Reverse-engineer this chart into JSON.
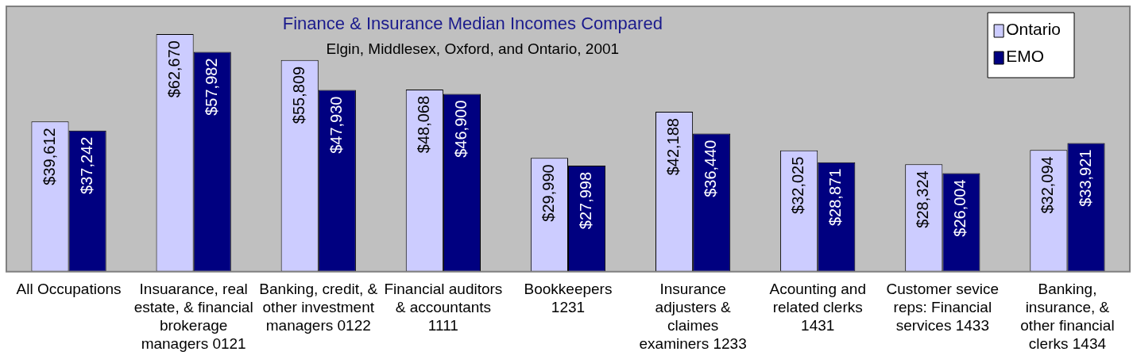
{
  "chart_data": {
    "type": "bar",
    "title": "Finance & Insurance Median Incomes Compared",
    "subtitle": "Elgin, Middlesex, Oxford, and Ontario, 2001",
    "categories": [
      "All Occupations",
      "Insuarance, real estate, & financial brokerage managers 0121",
      "Banking, credit, & other investment managers 0122",
      "Financial auditors & accountants 1111",
      "Bookkeepers 1231",
      "Insurance adjusters & claimes examiners 1233",
      "Acounting and related clerks 1431",
      "Customer sevice reps: Financial services 1433",
      "Banking, insurance, & other financial clerks 1434"
    ],
    "series": [
      {
        "name": "Ontario",
        "color": "#ccccff",
        "values": [
          39612,
          62670,
          55809,
          48068,
          29990,
          42188,
          32025,
          28324,
          32094
        ],
        "value_labels": [
          "$39,612",
          "$62,670",
          "$55,809",
          "$48,068",
          "$29,990",
          "$42,188",
          "$32,025",
          "$28,324",
          "$32,094"
        ]
      },
      {
        "name": "EMO",
        "color": "#000080",
        "values": [
          37242,
          57982,
          47930,
          46900,
          27998,
          36440,
          28871,
          26004,
          33921
        ],
        "value_labels": [
          "$37,242",
          "$57,982",
          "$47,930",
          "$46,900",
          "$27,998",
          "$36,440",
          "$28,871",
          "$26,004",
          "$33,921"
        ]
      }
    ],
    "tick_labels": "x",
    "grid": false,
    "legend": "top right"
  }
}
